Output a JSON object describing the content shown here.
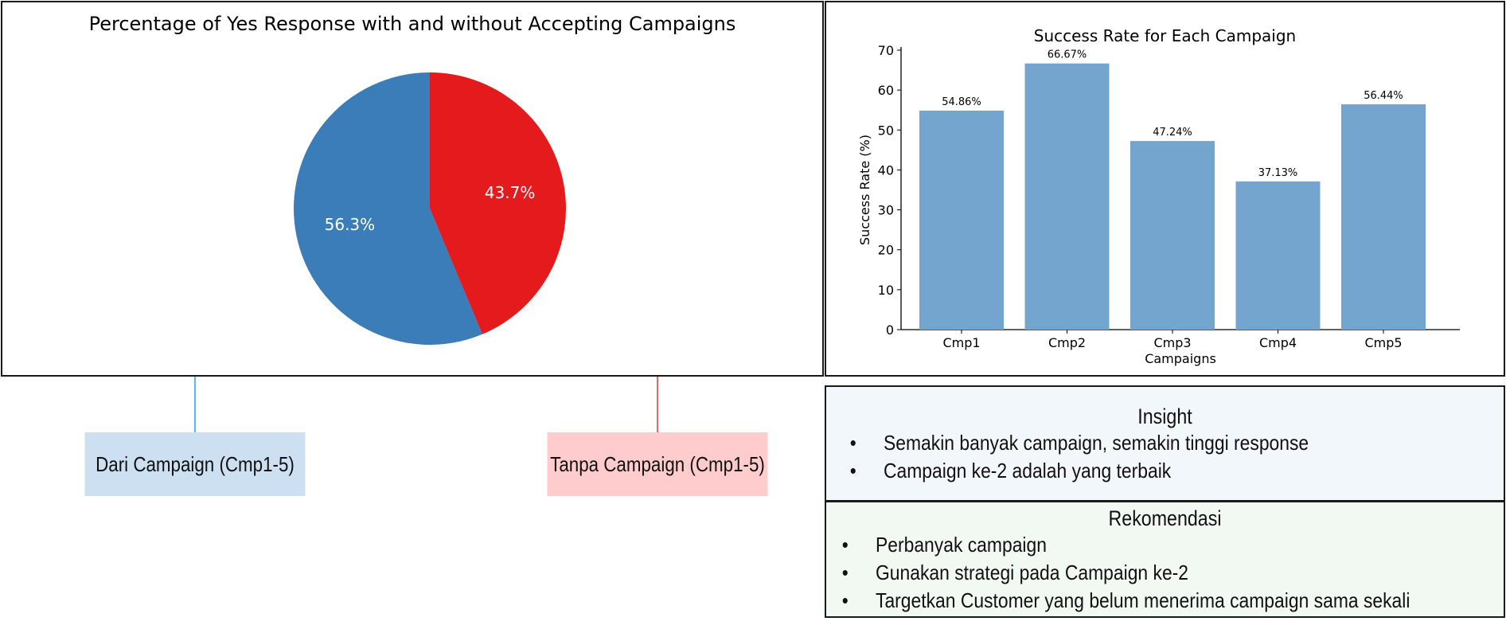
{
  "colors": {
    "pie_with": "#3a7db9",
    "pie_without": "#e41a1c",
    "bar": "#74a5cf",
    "arrow_with": "#1ba6dd",
    "arrow_without": "#e0363d",
    "box_with_bg": "#cce0f1",
    "box_without_bg": "#ffcccd",
    "insight_bg": "#f2f7fb",
    "reco_bg": "#f2f9f3"
  },
  "chart_data": [
    {
      "type": "pie",
      "title": "Percentage of Yes Response with and without Accepting Campaigns",
      "slices": [
        {
          "value": 56.3,
          "label": "56.3%",
          "color": "#3a7db9"
        },
        {
          "value": 43.7,
          "label": "43.7%",
          "color": "#e41a1c"
        }
      ]
    },
    {
      "type": "bar",
      "title": "Success Rate for Each Campaign",
      "xlabel": "Campaigns",
      "ylabel": "Success Rate (%)",
      "categories": [
        "Cmp1",
        "Cmp2",
        "Cmp3",
        "Cmp4",
        "Cmp5"
      ],
      "values": [
        54.86,
        66.67,
        47.24,
        37.13,
        56.44
      ],
      "data_labels": [
        "54.86%",
        "66.67%",
        "47.24%",
        "37.13%",
        "56.44%"
      ],
      "ylim": [
        0,
        70
      ],
      "yticks": [
        "0",
        "10",
        "20",
        "30",
        "40",
        "50",
        "60",
        "70"
      ],
      "grid": false
    }
  ],
  "annotations": {
    "with_campaign": "Dari Campaign (Cmp1-5)",
    "without_campaign": "Tanpa Campaign (Cmp1-5)"
  },
  "insight": {
    "title": "Insight",
    "items": [
      "Semakin banyak campaign, semakin tinggi response",
      "Campaign ke-2 adalah yang terbaik"
    ]
  },
  "recommendation": {
    "title": "Rekomendasi",
    "items": [
      "Perbanyak campaign",
      "Gunakan strategi pada Campaign ke-2",
      "Targetkan Customer yang belum menerima campaign sama sekali"
    ]
  }
}
